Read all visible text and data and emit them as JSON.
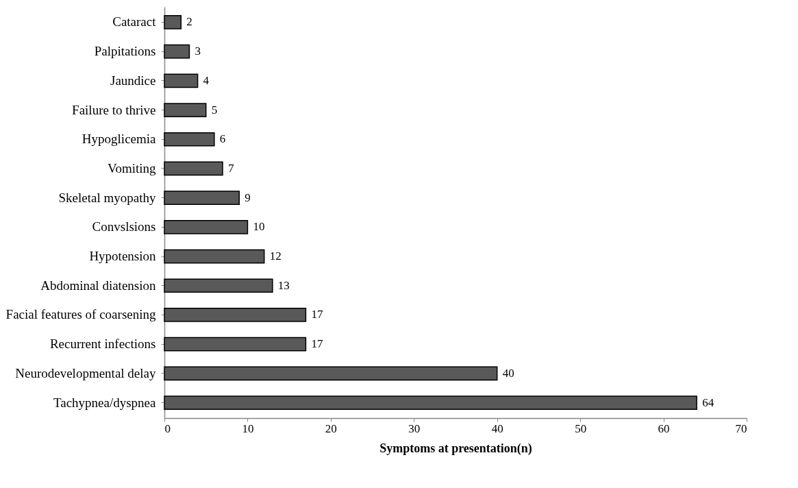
{
  "chart_data": {
    "type": "bar",
    "orientation": "horizontal",
    "xlabel": "Symptoms at presentation(n)",
    "categories": [
      "Cataract",
      "Palpitations",
      "Jaundice",
      "Failure to thrive",
      "Hypoglicemia",
      "Vomiting",
      "Skeletal myopathy",
      "Convslsions",
      "Hypotension",
      "Abdominal diatension",
      "Facial features of coarsening",
      "Recurrent infections",
      "Neurodevelopmental delay",
      "Tachypnea/dyspnea"
    ],
    "values": [
      2,
      3,
      4,
      5,
      6,
      7,
      9,
      10,
      12,
      13,
      17,
      17,
      40,
      64
    ],
    "color": "#595959",
    "xlim": [
      0,
      70
    ],
    "xticks": [
      0,
      10,
      20,
      30,
      40,
      50,
      60,
      70
    ],
    "data_labels": true,
    "grid": false
  }
}
